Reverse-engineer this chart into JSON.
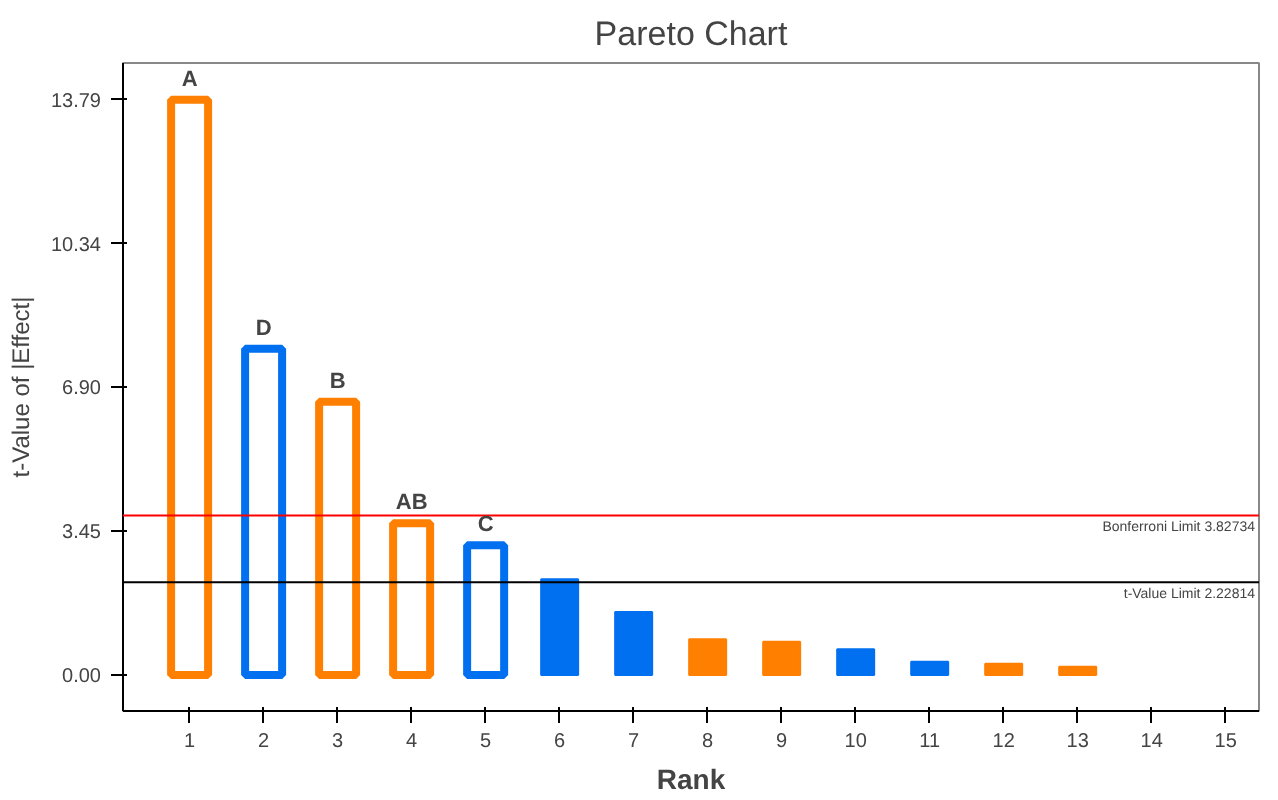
{
  "chart_data": {
    "type": "bar",
    "title": "Pareto Chart",
    "xlabel": "Rank",
    "ylabel": "t-Value of |Effect|",
    "x": [
      1,
      2,
      3,
      4,
      5,
      6,
      7,
      8,
      9,
      10,
      11,
      12,
      13
    ],
    "values": [
      13.79,
      7.82,
      6.55,
      3.64,
      3.11,
      2.3,
      1.51,
      0.86,
      0.8,
      0.62,
      0.32,
      0.27,
      0.2
    ],
    "colors": [
      "#ff7f00",
      "#0070f0",
      "#ff7f00",
      "#ff7f00",
      "#0070f0",
      "#0070f0",
      "#0070f0",
      "#ff7f00",
      "#ff7f00",
      "#0070f0",
      "#0070f0",
      "#ff7f00",
      "#ff7f00"
    ],
    "annotations": [
      {
        "text": "A",
        "x": 1,
        "y": 13.79
      },
      {
        "text": "D",
        "x": 2,
        "y": 7.82
      },
      {
        "text": "B",
        "x": 3,
        "y": 6.55
      },
      {
        "text": "AB",
        "x": 4,
        "y": 3.64
      },
      {
        "text": "C",
        "x": 5,
        "y": 3.11
      }
    ],
    "ref_lines": [
      {
        "axis": "y",
        "value": 3.82734,
        "label": "Bonferroni Limit 3.82734",
        "color": "#ff0000"
      },
      {
        "axis": "y",
        "value": 2.22814,
        "label": "t-Value Limit 2.22814",
        "color": "#000000"
      }
    ],
    "xlim": [
      0.1,
      15.45
    ],
    "xticks": [
      1,
      2,
      3,
      4,
      5,
      6,
      7,
      8,
      9,
      10,
      11,
      12,
      13,
      14,
      15
    ],
    "ylim": [
      -0.86,
      14.67
    ],
    "yticks": [
      {
        "value": 0,
        "label": "0.00"
      },
      {
        "value": 3.45,
        "label": "3.45"
      },
      {
        "value": 6.9,
        "label": "6.90"
      },
      {
        "value": 10.34,
        "label": "10.34"
      },
      {
        "value": 13.79,
        "label": "13.79"
      }
    ],
    "grid": false
  }
}
